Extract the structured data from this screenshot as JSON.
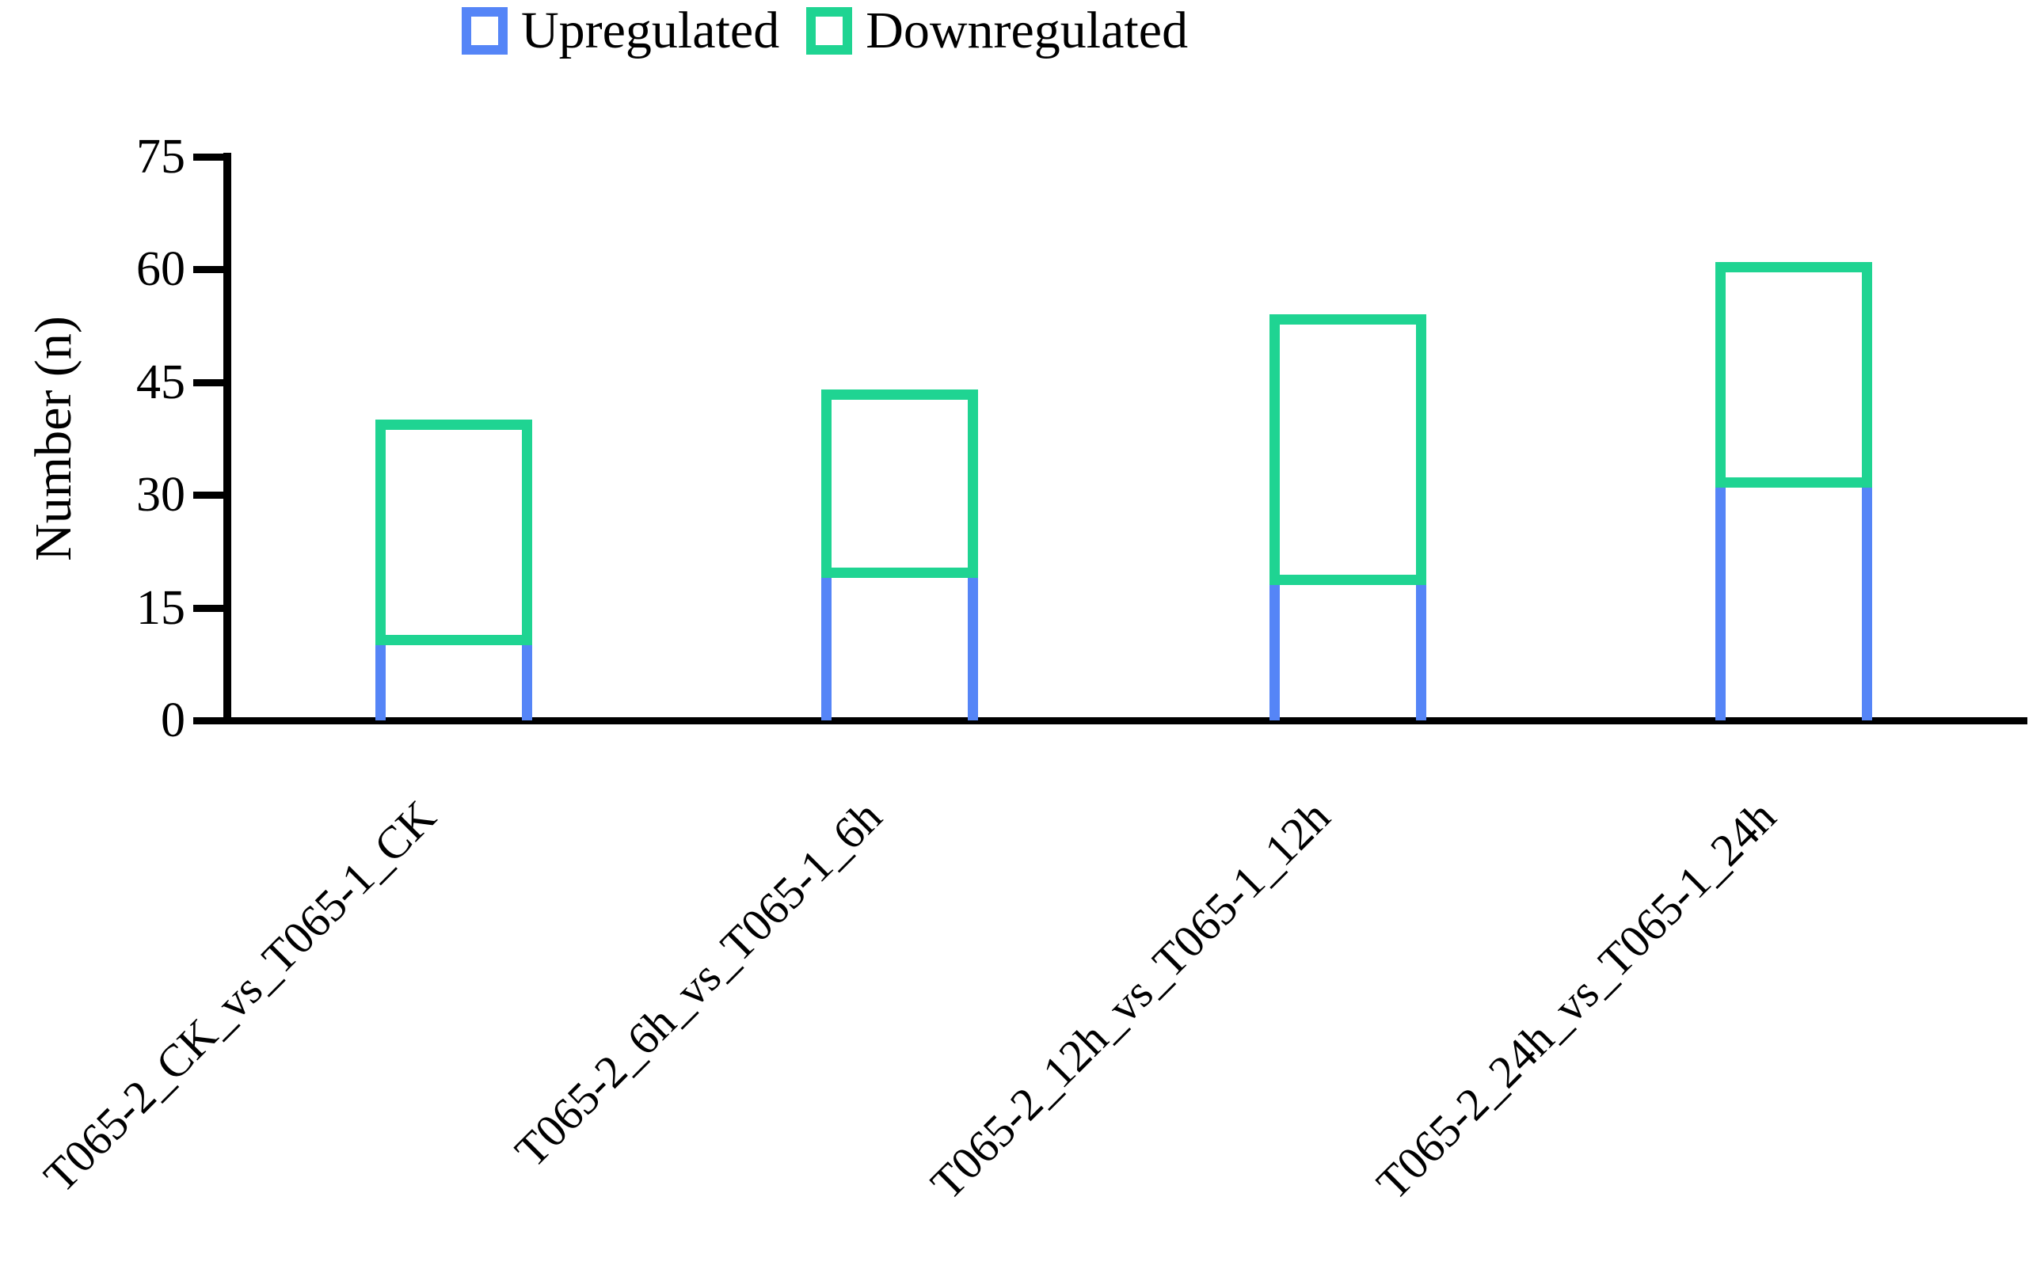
{
  "chart_data": {
    "type": "bar",
    "stacked": true,
    "bar_style": "hollow-outline",
    "ylabel": "Number (n)",
    "xlabel": "",
    "ylim": [
      0,
      75
    ],
    "yticks": [
      0,
      15,
      30,
      45,
      60,
      75
    ],
    "grid": false,
    "legend_position": "top",
    "axis_color": "#000000",
    "categories": [
      "T065-2_CK_vs_T065-1_CK",
      "T065-2_6h_vs_T065-1_6h",
      "T065-2_12h_vs_T065-1_12h",
      "T065-2_24h_vs_T065-1_24h"
    ],
    "series": [
      {
        "name": "Upregulated",
        "color": "#5585f7",
        "values": [
          10,
          19,
          18,
          31
        ]
      },
      {
        "name": "Downregulated",
        "color": "#1fd492",
        "values": [
          30,
          25,
          36,
          30
        ]
      }
    ],
    "totals": [
      40,
      44,
      54,
      61
    ]
  }
}
